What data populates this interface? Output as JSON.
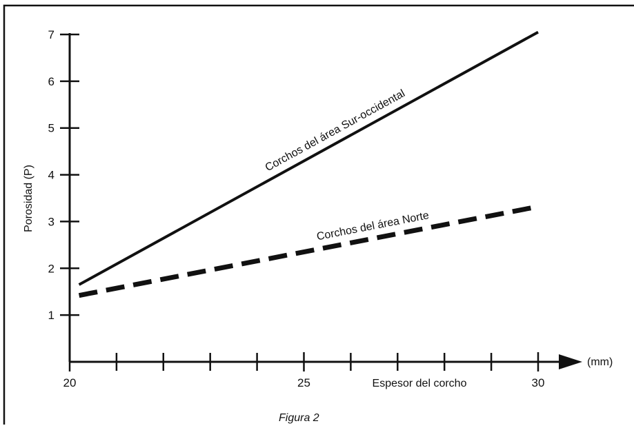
{
  "chart_data": {
    "type": "line",
    "title": "",
    "xlabel": "Espesor del corcho",
    "x_unit": "(mm)",
    "ylabel": "Porosidad (P)",
    "xlim": [
      20,
      30
    ],
    "ylim": [
      0,
      7
    ],
    "x_ticks": [
      20,
      25,
      30
    ],
    "x_minor_ticks": [
      21,
      22,
      23,
      24,
      26,
      27,
      28,
      29
    ],
    "y_ticks": [
      1,
      2,
      3,
      4,
      5,
      6,
      7
    ],
    "grid": false,
    "legend": "none",
    "caption": "Figura 2",
    "series": [
      {
        "name": "Corchos del área Sur-occidental",
        "style": "solid",
        "color": "#111111",
        "x": [
          20.2,
          30
        ],
        "y": [
          1.65,
          7.05
        ]
      },
      {
        "name": "Corchos del área Norte",
        "style": "dashed",
        "color": "#111111",
        "x": [
          20.2,
          30
        ],
        "y": [
          1.42,
          3.32
        ]
      }
    ]
  }
}
